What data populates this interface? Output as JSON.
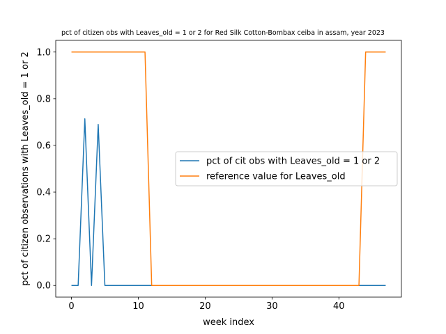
{
  "chart_data": {
    "type": "line",
    "title": "pct of citizen obs with Leaves_old = 1 or 2 for Red Silk Cotton-Bombax ceiba in assam, year 2023",
    "xlabel": "week index",
    "ylabel": "pct of citizen observations with Leaves_old = 1 or 2",
    "xlim": [
      -2.35,
      49.35
    ],
    "ylim": [
      -0.05,
      1.05
    ],
    "xticks": [
      0,
      10,
      20,
      30,
      40
    ],
    "yticks": [
      0.0,
      0.2,
      0.4,
      0.6,
      0.8,
      1.0
    ],
    "xtick_labels": [
      "0",
      "10",
      "20",
      "30",
      "40"
    ],
    "ytick_labels": [
      "0.0",
      "0.2",
      "0.4",
      "0.6",
      "0.8",
      "1.0"
    ],
    "grid": false,
    "legend_position": "center-right",
    "series": [
      {
        "name": "pct of cit obs with Leaves_old = 1 or 2",
        "color": "#1f77b4",
        "x": [
          0,
          1,
          2,
          3,
          4,
          5,
          6,
          7,
          8,
          9,
          10,
          11,
          12,
          13,
          14,
          15,
          16,
          17,
          18,
          19,
          20,
          21,
          22,
          23,
          24,
          25,
          26,
          27,
          28,
          29,
          30,
          31,
          32,
          33,
          34,
          35,
          36,
          37,
          38,
          39,
          40,
          41,
          42,
          43,
          44,
          45,
          46,
          47
        ],
        "y": [
          0,
          0,
          0.714,
          0,
          0.69,
          0,
          0,
          0,
          0,
          0,
          0,
          0,
          0,
          0,
          0,
          0,
          0,
          0,
          0,
          0,
          0,
          0,
          0,
          0,
          0,
          0,
          0,
          0,
          0,
          0,
          0,
          0,
          0,
          0,
          0,
          0,
          0,
          0,
          0,
          0,
          0,
          0,
          0,
          0,
          0,
          0,
          0,
          0
        ]
      },
      {
        "name": "reference value for Leaves_old",
        "color": "#ff7f0e",
        "x": [
          0,
          1,
          2,
          3,
          4,
          5,
          6,
          7,
          8,
          9,
          10,
          11,
          12,
          13,
          14,
          15,
          16,
          17,
          18,
          19,
          20,
          21,
          22,
          23,
          24,
          25,
          26,
          27,
          28,
          29,
          30,
          31,
          32,
          33,
          34,
          35,
          36,
          37,
          38,
          39,
          40,
          41,
          42,
          43,
          44,
          45,
          46,
          47
        ],
        "y": [
          1,
          1,
          1,
          1,
          1,
          1,
          1,
          1,
          1,
          1,
          1,
          1,
          0,
          0,
          0,
          0,
          0,
          0,
          0,
          0,
          0,
          0,
          0,
          0,
          0,
          0,
          0,
          0,
          0,
          0,
          0,
          0,
          0,
          0,
          0,
          0,
          0,
          0,
          0,
          0,
          0,
          0,
          0,
          0,
          1,
          1,
          1,
          1
        ]
      }
    ]
  }
}
